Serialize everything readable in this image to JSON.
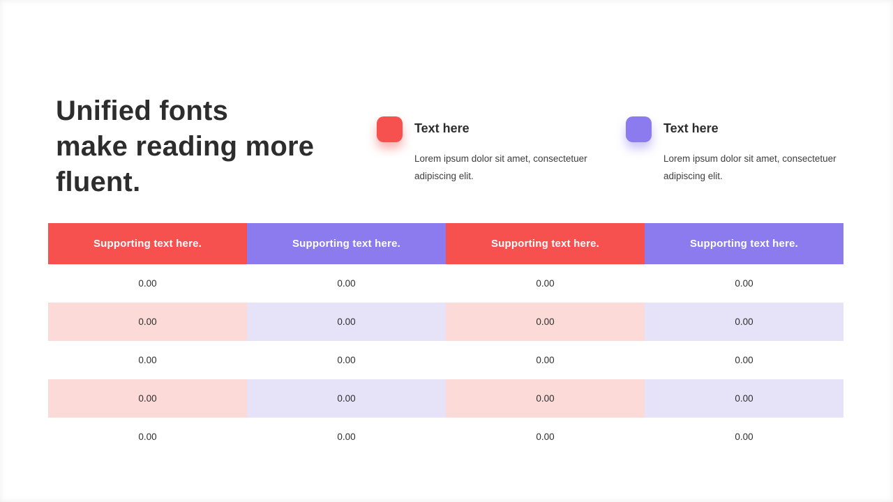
{
  "heading": {
    "lines": [
      "Unified fonts",
      "make reading more",
      "fluent."
    ],
    "full_text": "Unified fonts make reading more fluent."
  },
  "features": [
    {
      "icon": "red-rounded-square-icon",
      "icon_color": "#f6504f",
      "title": "Text here",
      "description": "Lorem ipsum dolor sit amet, consectetuer adipiscing elit."
    },
    {
      "icon": "purple-rounded-square-icon",
      "icon_color": "#8c7bef",
      "title": "Text here",
      "description": "Lorem ipsum dolor sit amet, consectetuer adipiscing elit."
    }
  ],
  "table": {
    "headers": [
      "Supporting text here.",
      "Supporting text here.",
      "Supporting text here.",
      "Supporting text here."
    ],
    "header_colors": [
      "#f6504f",
      "#8c7bef",
      "#f6504f",
      "#8c7bef"
    ],
    "rows": [
      [
        "0.00",
        "0.00",
        "0.00",
        "0.00"
      ],
      [
        "0.00",
        "0.00",
        "0.00",
        "0.00"
      ],
      [
        "0.00",
        "0.00",
        "0.00",
        "0.00"
      ],
      [
        "0.00",
        "0.00",
        "0.00",
        "0.00"
      ],
      [
        "0.00",
        "0.00",
        "0.00",
        "0.00"
      ]
    ],
    "striped_row_indexes": [
      1,
      3
    ],
    "stripe_tints": [
      "#fcdad8",
      "#e6e2f7",
      "#fcdad8",
      "#e6e2f7"
    ]
  },
  "colors": {
    "background": "#ffffff",
    "heading_text": "#2d2d2d",
    "body_text": "#3d3d3d",
    "accent_red": "#f6504f",
    "accent_purple": "#8c7bef",
    "tint_pink": "#fcdad8",
    "tint_lavender": "#e6e2f7"
  }
}
